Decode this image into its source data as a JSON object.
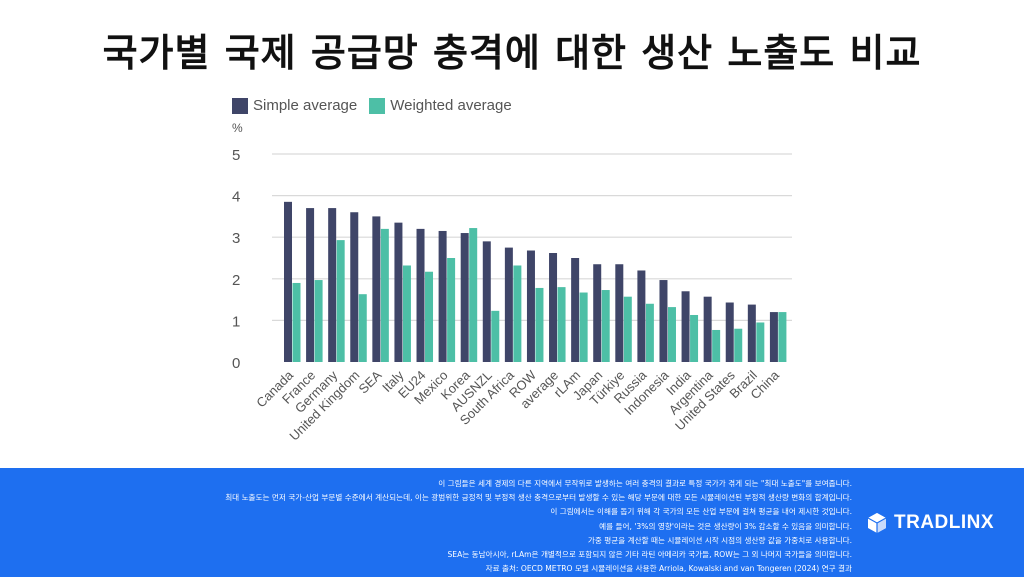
{
  "title": "국가별 국제 공급망 충격에 대한 생산 노출도 비교",
  "legend": {
    "simple": "Simple average",
    "weighted": "Weighted average"
  },
  "colors": {
    "simple": "#3f4568",
    "weighted": "#4dbfa6",
    "grid": "#d9d9d9",
    "footer": "#1e6ff0"
  },
  "chart_data": {
    "type": "bar",
    "ylabel": "%",
    "ylim": [
      0,
      5
    ],
    "yticks": [
      0,
      1,
      2,
      3,
      4,
      5
    ],
    "grid": true,
    "legend_position": "top-left",
    "categories": [
      "Canada",
      "France",
      "Germany",
      "United Kingdom",
      "SEA",
      "Italy",
      "EU24",
      "Mexico",
      "Korea",
      "AUSNZL",
      "South Africa",
      "ROW",
      "average",
      "rLAm",
      "Japan",
      "Türkiye",
      "Russia",
      "Indonesia",
      "India",
      "Argentina",
      "United States",
      "Brazil",
      "China"
    ],
    "series": [
      {
        "name": "Simple average",
        "values": [
          3.85,
          3.7,
          3.7,
          3.6,
          3.5,
          3.35,
          3.2,
          3.15,
          3.1,
          2.9,
          2.75,
          2.68,
          2.62,
          2.5,
          2.35,
          2.35,
          2.2,
          1.97,
          1.7,
          1.57,
          1.43,
          1.38,
          1.2
        ]
      },
      {
        "name": "Weighted average",
        "values": [
          1.9,
          1.97,
          2.93,
          1.63,
          3.2,
          2.32,
          2.17,
          2.5,
          3.22,
          1.23,
          2.32,
          1.78,
          1.8,
          1.67,
          1.73,
          1.57,
          1.4,
          1.32,
          1.13,
          0.77,
          0.8,
          0.95,
          1.2
        ]
      }
    ]
  },
  "footnotes": [
    "이 그림들은 세계 경제의 다른 지역에서 무작위로 발생하는 여러 충격의 결과로 특정 국가가 겪게 되는 \"최대 노출도\"를 보여줍니다.",
    "최대 노출도는 먼저 국가-산업 부문별 수준에서 계산되는데, 이는 광범위한 긍정적 및 부정적 생산 충격으로부터 발생할 수 있는 해당 부문에 대한 모든 시뮬레이션된 부정적 생산량 변화의 합계입니다.",
    "이 그림에서는 이해를 돕기 위해 각 국가의 모든 산업 부문에 걸쳐 평균을 내어 제시한 것입니다.",
    "예를 들어, '3%의 영향'이라는 것은 생산량이 3% 감소할 수 있음을 의미합니다.",
    "가중 평균을 계산할 때는 시뮬레이션 시작 시점의 생산량 값을 가중치로 사용합니다.",
    "SEA는 동남아시아, rLAm은 개별적으로 포함되지 않은 기타 라틴 아메리카 국가들, ROW는 그 외 나머지 국가들을 의미합니다.",
    "자료 출처: OECD METRO 모델 시뮬레이션을 사용한 Arriola, Kowalski and van Tongeren (2024) 연구 결과"
  ],
  "brand": {
    "name": "TRADLINX",
    "logo_icon": "cube-icon"
  }
}
